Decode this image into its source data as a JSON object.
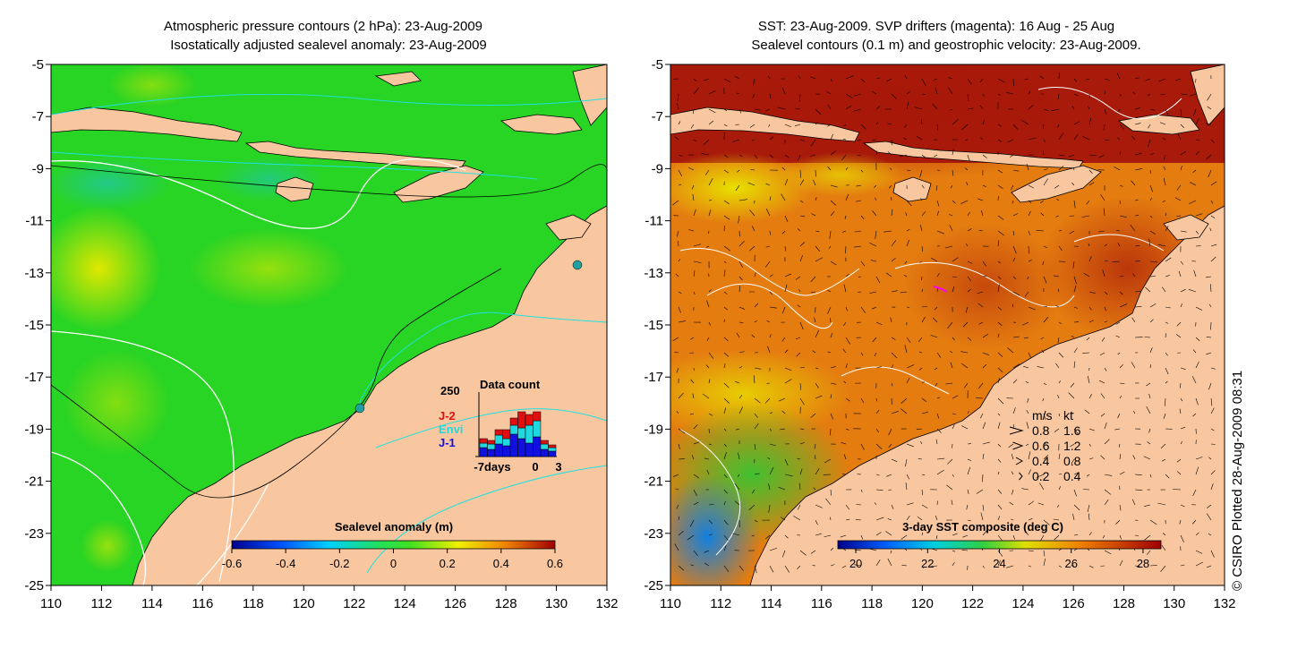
{
  "left_panel": {
    "title_line1": "Atmospheric pressure contours (2 hPa): 23-Aug-2009",
    "title_line2": "Isostatically adjusted sealevel anomaly: 23-Aug-2009",
    "y_ticks": [
      "-5",
      "-7",
      "-9",
      "-11",
      "-13",
      "-15",
      "-17",
      "-19",
      "-21",
      "-23",
      "-25"
    ],
    "x_ticks": [
      "110",
      "112",
      "114",
      "116",
      "118",
      "120",
      "122",
      "124",
      "126",
      "128",
      "130",
      "132"
    ],
    "colorbar": {
      "title": "Sealevel anomaly (m)",
      "ticks": [
        "-0.6",
        "-0.4",
        "-0.2",
        "0",
        "0.2",
        "0.4",
        "0.6"
      ]
    },
    "data_count": {
      "title": "Data count",
      "ymax_label": "250",
      "x_labels": [
        "-7days",
        "0",
        "3"
      ],
      "legend": [
        {
          "label": "J-2",
          "color": "#e01010"
        },
        {
          "label": "Envi",
          "color": "#20d8e0"
        },
        {
          "label": "J-1",
          "color": "#1010e0"
        }
      ]
    }
  },
  "right_panel": {
    "title_line1": "SST: 23-Aug-2009. SVP drifters (magenta): 16 Aug - 25 Aug",
    "title_line2": "Sealevel contours (0.1 m) and geostrophic velocity: 23-Aug-2009.",
    "y_ticks": [
      "-5",
      "-7",
      "-9",
      "-11",
      "-13",
      "-15",
      "-17",
      "-19",
      "-21",
      "-23",
      "-25"
    ],
    "x_ticks": [
      "110",
      "112",
      "114",
      "116",
      "118",
      "120",
      "122",
      "124",
      "126",
      "128",
      "130",
      "132"
    ],
    "colorbar": {
      "title": "3-day SST composite (deg C)",
      "ticks": [
        "20",
        "22",
        "24",
        "26",
        "28"
      ]
    },
    "velocity_legend": {
      "header_ms": "m/s",
      "header_kt": "kt",
      "rows": [
        {
          "ms": "0.8",
          "kt": "1.6"
        },
        {
          "ms": "0.6",
          "kt": "1.2"
        },
        {
          "ms": "0.4",
          "kt": "0.8"
        },
        {
          "ms": "0.2",
          "kt": "0.4"
        }
      ]
    }
  },
  "credit": "© CSIRO Plotted 28-Aug-2009 08:31",
  "colors": {
    "land": "#f9c79f",
    "sla_green": "#22d41e",
    "sst_orange": "#e88010",
    "sst_red": "#a01010"
  }
}
